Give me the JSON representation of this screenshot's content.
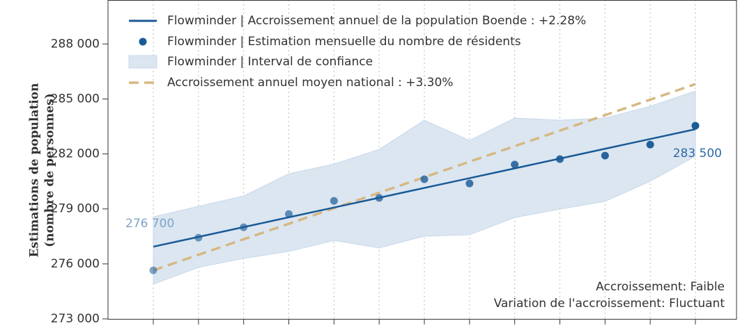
{
  "chart_data": {
    "type": "line",
    "ylabel": [
      "Estimations de population",
      "(nombre de personnes)"
    ],
    "categories": [
      null,
      null,
      null,
      null,
      null,
      null,
      null,
      null,
      null,
      null,
      null,
      null,
      null
    ],
    "ylim": [
      273000,
      290400
    ],
    "yticks": [
      {
        "value": 273000,
        "label": "273 000"
      },
      {
        "value": 276000,
        "label": "276 000"
      },
      {
        "value": 279000,
        "label": "279 000"
      },
      {
        "value": 282000,
        "label": "282 000"
      },
      {
        "value": 285000,
        "label": "285 000"
      },
      {
        "value": 288000,
        "label": "288 000"
      }
    ],
    "grid": true,
    "legend": "upper left",
    "series": [
      {
        "type": "line",
        "name": "Flowminder | Accroissement annuel de la population Boende : +2.28%",
        "color": "#1a5a96",
        "values": [
          276940,
          277474,
          278008,
          278543,
          279077,
          279611,
          280145,
          280679,
          281213,
          281748,
          282282,
          282816,
          283350
        ]
      },
      {
        "type": "scatter",
        "name": "Flowminder | Estimation mensuelle du nombre de résidents",
        "color": "#1a5a96",
        "values": [
          275650,
          277430,
          278000,
          278720,
          279440,
          279600,
          280620,
          280390,
          281420,
          281720,
          281910,
          282510,
          283540
        ]
      },
      {
        "type": "band",
        "name": "Flowminder | Interval de confiance",
        "color": "#dbe6f1",
        "lower": [
          274900,
          275810,
          276300,
          276680,
          277280,
          276870,
          277510,
          277590,
          278530,
          278990,
          279410,
          280510,
          281870
        ],
        "upper": [
          278570,
          279140,
          279710,
          280920,
          281450,
          282250,
          283840,
          282740,
          283960,
          283840,
          283960,
          284600,
          285430
        ]
      },
      {
        "type": "dashed",
        "name": "Accroissement annuel moyen national : +3.30%",
        "color": "#d6b883",
        "values": [
          275650,
          276497,
          277343,
          278190,
          279037,
          279883,
          280730,
          281577,
          282423,
          283270,
          284117,
          284963,
          285810
        ]
      }
    ],
    "annotations": [
      "276 700",
      "283 500"
    ],
    "notes": [
      "Accroissement: Faible",
      "Variation de l'accroissement: Fluctuant"
    ]
  }
}
